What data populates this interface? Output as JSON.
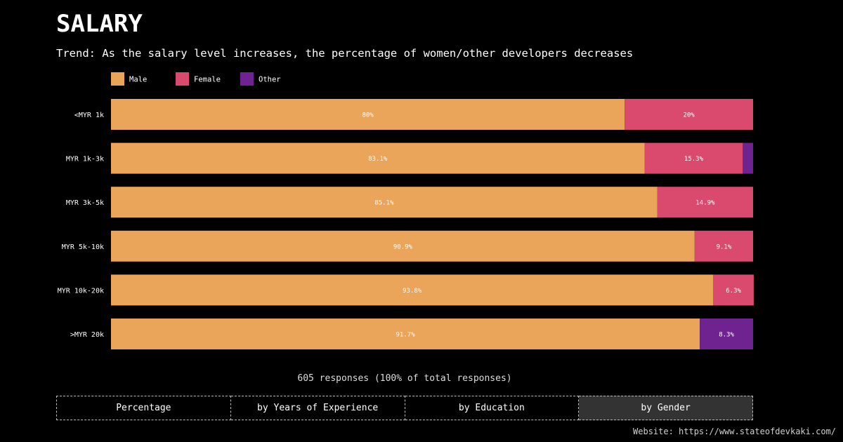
{
  "page": {
    "title": "SALARY",
    "subtitle": "Trend: As the salary level increases, the percentage of women/other developers decreases",
    "responses_note": "605 responses (100% of total responses)",
    "website": "Website: https://www.stateofdevkaki.com/"
  },
  "tabs": [
    {
      "label": "Percentage",
      "active": false
    },
    {
      "label": "by Years of Experience",
      "active": false
    },
    {
      "label": "by Education",
      "active": false
    },
    {
      "label": "by Gender",
      "active": true
    }
  ],
  "colors": {
    "background": "#000000",
    "male": "#EBA55A",
    "female": "#D94A6E",
    "other": "#6E2390",
    "tab_active": "#333333"
  },
  "chart_data": {
    "type": "bar",
    "orientation": "horizontal",
    "stacked": true,
    "legend_position": "top-left",
    "xlim": [
      0,
      100
    ],
    "categories": [
      "<MYR 1k",
      "MYR 1k-3k",
      "MYR 3k-5k",
      "MYR 5k-10k",
      "MYR 10k-20k",
      ">MYR 20k"
    ],
    "series": [
      {
        "name": "Male",
        "color": "#EBA55A",
        "values": [
          80,
          83.1,
          85.1,
          90.9,
          93.8,
          91.7
        ],
        "labels": [
          "80%",
          "83.1%",
          "85.1%",
          "90.9%",
          "93.8%",
          "91.7%"
        ]
      },
      {
        "name": "Female",
        "color": "#D94A6E",
        "values": [
          20,
          15.3,
          14.9,
          9.1,
          6.3,
          0
        ],
        "labels": [
          "20%",
          "15.3%",
          "14.9%",
          "9.1%",
          "6.3%",
          ""
        ]
      },
      {
        "name": "Other",
        "color": "#6E2390",
        "values": [
          0,
          1.6,
          0,
          0,
          0,
          8.3
        ],
        "labels": [
          "",
          "",
          "",
          "",
          "",
          "8.3%"
        ]
      }
    ]
  }
}
